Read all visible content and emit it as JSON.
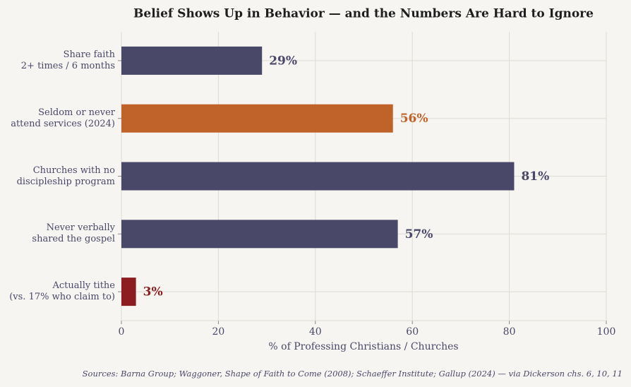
{
  "chart_data": {
    "type": "barh",
    "title": "Belief Shows Up in Behavior — and the Numbers Are Hard to Ignore",
    "categories": [
      "Share faith\n2+ times / 6 months",
      "Seldom or never\nattend services (2024)",
      "Churches with no\ndiscipleship program",
      "Never verbally\nshared the gospel",
      "Actually tithe\n(vs. 17% who claim to)"
    ],
    "values": [
      29,
      56,
      81,
      57,
      3
    ],
    "value_labels": [
      "29%",
      "56%",
      "81%",
      "57%",
      "3%"
    ],
    "colors": [
      "#4a4868",
      "#c0632a",
      "#4a4868",
      "#4a4868",
      "#8c1c1f"
    ],
    "xlabel": "% of Professing Christians / Churches",
    "xlim": [
      0,
      100
    ],
    "xticks": [
      0,
      20,
      40,
      60,
      80,
      100
    ],
    "grid": true,
    "source": "Sources: Barna Group; Waggoner, Shape of Faith to Come (2008); Schaeffer Institute; Gallup (2024) — via Dickerson chs. 6, 10, 11"
  }
}
